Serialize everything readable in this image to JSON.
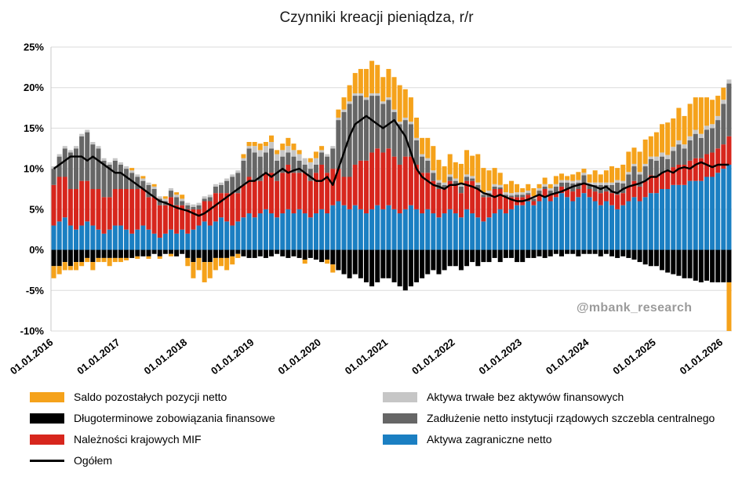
{
  "title": "Czynniki kreacji pieniądza, r/r",
  "watermark": "@mbank_research",
  "chart_data": {
    "type": "bar",
    "subtype": "stacked-bar-with-line",
    "x_start": "2016-01",
    "x_step_months": 1,
    "x_tick_labels": [
      "01.01.2016",
      "01.01.2017",
      "01.01.2018",
      "01.01.2019",
      "01.01.2020",
      "01.01.2021",
      "01.01.2022",
      "01.01.2023",
      "01.01.2024",
      "01.01.2025",
      "01.01.2026"
    ],
    "ylim": [
      -10,
      25
    ],
    "y_ticks": [
      "25%",
      "20%",
      "15%",
      "10%",
      "5%",
      "0%",
      "-5%",
      "-10%"
    ],
    "y_tick_values": [
      25,
      20,
      15,
      10,
      5,
      0,
      -5,
      -10
    ],
    "grid": true,
    "legend_position": "bottom",
    "series": [
      {
        "name": "Aktywa zagraniczne netto",
        "color": "#1B7FC2",
        "values": [
          3.0,
          3.5,
          4.0,
          3.0,
          2.5,
          3.0,
          3.5,
          3.0,
          2.5,
          2.0,
          2.5,
          3.0,
          3.0,
          2.5,
          2.0,
          2.5,
          3.0,
          2.5,
          2.0,
          1.5,
          2.0,
          2.5,
          2.0,
          2.5,
          2.0,
          2.5,
          3.0,
          3.5,
          3.0,
          3.5,
          4.0,
          3.5,
          3.0,
          3.5,
          4.0,
          4.5,
          4.0,
          4.5,
          5.0,
          4.5,
          4.0,
          4.5,
          5.0,
          4.5,
          5.0,
          4.5,
          4.0,
          4.5,
          5.0,
          4.5,
          5.5,
          6.0,
          5.5,
          5.0,
          5.5,
          5.0,
          4.5,
          5.0,
          5.5,
          5.0,
          5.5,
          5.0,
          4.5,
          5.0,
          5.5,
          5.0,
          4.5,
          5.0,
          4.5,
          4.0,
          4.5,
          5.0,
          4.5,
          4.0,
          5.0,
          4.5,
          4.0,
          3.5,
          4.0,
          4.5,
          5.0,
          4.5,
          5.0,
          5.5,
          5.5,
          6.0,
          5.5,
          6.0,
          6.5,
          6.0,
          6.5,
          7.0,
          6.5,
          6.0,
          6.5,
          7.0,
          6.5,
          6.0,
          5.5,
          6.0,
          5.5,
          5.0,
          5.5,
          6.0,
          6.5,
          6.0,
          6.5,
          7.0,
          7.0,
          7.5,
          7.5,
          8.0,
          8.0,
          8.0,
          8.5,
          8.5,
          8.5,
          9.0,
          9.0,
          9.5,
          10.0,
          10.5
        ]
      },
      {
        "name": "Należności krajowych MIF",
        "color": "#D7261D",
        "values": [
          5.0,
          5.5,
          5.0,
          4.5,
          5.0,
          5.5,
          5.0,
          4.5,
          5.0,
          4.5,
          4.0,
          4.5,
          4.5,
          5.0,
          5.5,
          5.0,
          4.5,
          4.0,
          4.5,
          4.0,
          3.5,
          4.0,
          3.5,
          3.0,
          3.0,
          2.5,
          2.0,
          2.5,
          3.0,
          3.5,
          3.0,
          3.5,
          4.0,
          3.5,
          4.0,
          4.5,
          4.5,
          4.0,
          4.5,
          5.0,
          4.5,
          5.0,
          5.5,
          5.0,
          4.5,
          5.0,
          4.5,
          5.0,
          5.5,
          5.0,
          4.5,
          4.0,
          3.5,
          4.0,
          5.0,
          6.0,
          6.5,
          7.0,
          7.0,
          7.0,
          7.0,
          6.5,
          6.0,
          6.5,
          6.0,
          5.5,
          5.0,
          4.5,
          4.0,
          3.5,
          3.0,
          3.5,
          3.5,
          3.0,
          3.5,
          4.0,
          3.5,
          3.0,
          2.5,
          3.0,
          2.5,
          2.0,
          1.5,
          1.0,
          1.0,
          0.8,
          0.5,
          0.8,
          1.0,
          0.8,
          0.5,
          0.8,
          1.0,
          1.2,
          1.0,
          1.2,
          1.0,
          1.2,
          1.5,
          1.2,
          1.5,
          1.8,
          1.5,
          1.8,
          2.0,
          1.8,
          2.0,
          2.2,
          2.0,
          2.0,
          2.2,
          2.2,
          2.5,
          2.5,
          2.5,
          2.8,
          2.8,
          2.8,
          3.0,
          3.0,
          3.0,
          3.5
        ]
      },
      {
        "name": "Zadłużenie netto instytucji rządowych szczebla centralnego",
        "color": "#666666",
        "values": [
          2.0,
          2.5,
          3.5,
          4.5,
          5.0,
          5.5,
          6.0,
          5.5,
          5.0,
          4.5,
          4.0,
          3.5,
          3.0,
          2.5,
          2.0,
          1.5,
          1.0,
          1.5,
          1.0,
          0.8,
          0.5,
          0.8,
          1.0,
          0.5,
          0.5,
          0.3,
          0.5,
          0.3,
          0.5,
          0.8,
          1.0,
          1.5,
          2.0,
          2.5,
          3.0,
          3.5,
          3.5,
          3.0,
          2.5,
          3.0,
          2.5,
          2.0,
          1.5,
          2.0,
          1.5,
          1.0,
          1.5,
          1.0,
          1.5,
          2.0,
          2.5,
          6.0,
          8.0,
          9.0,
          8.5,
          8.0,
          7.5,
          7.0,
          6.5,
          6.0,
          6.0,
          5.5,
          5.0,
          4.5,
          4.0,
          3.0,
          2.0,
          1.5,
          1.0,
          0.8,
          0.5,
          0.5,
          0.5,
          0.8,
          0.5,
          0.3,
          0.5,
          0.3,
          0.5,
          0.3,
          0.2,
          0.3,
          0.2,
          0.3,
          0.3,
          0.2,
          0.3,
          0.5,
          0.3,
          0.5,
          0.8,
          0.5,
          0.8,
          1.0,
          0.8,
          1.0,
          0.5,
          0.8,
          1.0,
          0.8,
          1.0,
          1.5,
          1.2,
          1.5,
          1.8,
          1.5,
          1.8,
          2.0,
          2.0,
          2.0,
          1.5,
          2.0,
          2.5,
          2.0,
          2.5,
          3.0,
          2.5,
          3.0,
          3.0,
          3.5,
          5.0,
          6.5
        ]
      },
      {
        "name": "Aktywa trwałe bez aktywów finansowych",
        "color": "#C6C6C6",
        "values": [
          0.3,
          0.3,
          0.3,
          0.3,
          0.3,
          0.3,
          0.3,
          0.3,
          0.3,
          0.3,
          0.3,
          0.3,
          0.3,
          0.3,
          0.3,
          0.3,
          0.3,
          0.3,
          0.3,
          0.3,
          0.3,
          0.3,
          0.3,
          0.3,
          0.3,
          0.3,
          0.3,
          0.3,
          0.3,
          0.3,
          0.3,
          0.3,
          0.3,
          0.3,
          0.3,
          0.3,
          0.8,
          0.8,
          0.8,
          0.8,
          0.8,
          0.8,
          0.8,
          0.8,
          0.8,
          0.8,
          0.8,
          0.8,
          0.3,
          0.3,
          0.3,
          0.3,
          0.3,
          0.3,
          0.3,
          0.3,
          0.3,
          0.3,
          0.3,
          0.3,
          0.3,
          0.3,
          0.3,
          0.3,
          0.3,
          0.3,
          0.3,
          0.3,
          0.3,
          0.3,
          0.3,
          0.3,
          0.3,
          0.3,
          0.3,
          0.3,
          0.3,
          0.3,
          0.3,
          0.3,
          0.3,
          0.3,
          0.3,
          0.3,
          0.3,
          0.3,
          0.3,
          0.3,
          0.3,
          0.3,
          0.3,
          0.3,
          0.3,
          0.3,
          0.3,
          0.3,
          0.3,
          0.3,
          0.3,
          0.3,
          0.3,
          0.3,
          0.3,
          0.3,
          0.3,
          0.3,
          0.3,
          0.3,
          0.5,
          0.5,
          0.5,
          0.5,
          0.5,
          0.5,
          0.5,
          0.5,
          0.5,
          0.5,
          0.5,
          0.5,
          0.5,
          0.5
        ]
      },
      {
        "name": "Długoterminowe zobowiązania finansowe",
        "color": "#000000",
        "values": [
          -2.0,
          -2.0,
          -1.5,
          -2.0,
          -1.5,
          -1.5,
          -1.0,
          -1.5,
          -1.0,
          -1.0,
          -1.0,
          -1.0,
          -1.0,
          -1.0,
          -1.0,
          -0.8,
          -0.8,
          -0.8,
          -0.5,
          -0.8,
          -0.5,
          -0.5,
          -0.8,
          -0.5,
          -1.0,
          -1.5,
          -1.0,
          -1.5,
          -1.5,
          -1.0,
          -1.0,
          -1.0,
          -0.8,
          -0.5,
          -0.8,
          -1.0,
          -1.0,
          -0.8,
          -1.0,
          -0.8,
          -0.5,
          -0.8,
          -1.0,
          -0.8,
          -1.0,
          -1.2,
          -1.0,
          -1.2,
          -1.5,
          -1.2,
          -1.8,
          -2.5,
          -3.0,
          -3.5,
          -3.0,
          -3.5,
          -4.0,
          -4.5,
          -4.0,
          -3.5,
          -3.5,
          -4.0,
          -4.5,
          -5.0,
          -4.5,
          -4.0,
          -3.5,
          -3.0,
          -2.5,
          -3.0,
          -2.5,
          -2.0,
          -2.0,
          -2.5,
          -2.0,
          -1.5,
          -2.0,
          -1.5,
          -1.5,
          -1.0,
          -1.5,
          -1.0,
          -1.0,
          -1.5,
          -1.5,
          -1.0,
          -1.0,
          -0.8,
          -1.0,
          -0.8,
          -0.5,
          -0.8,
          -0.5,
          -0.5,
          -0.8,
          -0.5,
          -0.5,
          -0.5,
          -0.8,
          -0.5,
          -0.8,
          -1.0,
          -0.8,
          -1.0,
          -1.2,
          -1.5,
          -1.8,
          -2.0,
          -2.0,
          -2.5,
          -2.8,
          -3.0,
          -3.2,
          -3.5,
          -3.5,
          -3.8,
          -4.0,
          -3.8,
          -4.0,
          -4.0,
          -4.0,
          -4.0
        ]
      },
      {
        "name": "Saldo pozostałych pozycji netto",
        "color": "#F5A21B",
        "values": [
          -1.5,
          -1.0,
          -1.0,
          -0.5,
          -1.0,
          -0.5,
          -0.5,
          -1.0,
          -0.5,
          -0.5,
          -1.0,
          -0.5,
          -0.5,
          -0.3,
          0.3,
          -0.3,
          0.3,
          -0.3,
          0.3,
          -0.3,
          0.3,
          -0.3,
          0.3,
          0.5,
          -1.0,
          -2.0,
          -1.5,
          -2.5,
          -2.0,
          -1.5,
          -1.0,
          -1.5,
          -1.0,
          -0.5,
          0.5,
          0.5,
          0.5,
          0.8,
          0.5,
          0.8,
          0.5,
          0.8,
          1.0,
          0.8,
          0.5,
          -0.5,
          0.5,
          0.8,
          0.5,
          -0.5,
          -1.0,
          1.0,
          1.5,
          2.0,
          2.5,
          3.0,
          3.5,
          4.0,
          3.5,
          3.0,
          3.5,
          4.0,
          4.5,
          3.5,
          3.0,
          2.5,
          2.0,
          2.5,
          3.0,
          2.5,
          2.0,
          2.5,
          2.0,
          2.5,
          3.0,
          2.5,
          3.5,
          3.0,
          2.5,
          2.0,
          1.5,
          1.0,
          1.5,
          1.0,
          0.5,
          0.8,
          1.0,
          0.5,
          0.8,
          0.5,
          1.0,
          0.8,
          0.5,
          0.8,
          1.0,
          0.5,
          1.0,
          1.5,
          1.0,
          1.5,
          2.0,
          1.5,
          2.0,
          2.5,
          2.0,
          2.5,
          3.0,
          2.5,
          3.0,
          3.5,
          4.0,
          3.5,
          4.0,
          3.5,
          4.0,
          4.0,
          4.5,
          3.5,
          3.0,
          2.5,
          1.5,
          -6.0
        ]
      }
    ],
    "line_series": {
      "name": "Ogółem",
      "color": "#000000",
      "values": [
        10.0,
        10.5,
        11.0,
        11.5,
        11.5,
        11.5,
        11.0,
        11.5,
        11.0,
        10.5,
        10.0,
        9.5,
        9.5,
        9.0,
        8.5,
        8.0,
        7.5,
        7.0,
        6.5,
        6.0,
        5.8,
        5.5,
        5.2,
        5.0,
        4.8,
        4.5,
        4.2,
        4.5,
        5.0,
        5.5,
        6.0,
        6.5,
        7.0,
        7.5,
        8.0,
        8.5,
        8.5,
        9.0,
        9.5,
        9.0,
        9.5,
        10.0,
        9.5,
        9.8,
        10.0,
        9.5,
        9.0,
        8.5,
        8.5,
        9.0,
        8.0,
        10.0,
        12.0,
        14.0,
        15.5,
        16.0,
        16.5,
        16.0,
        15.5,
        15.0,
        15.5,
        16.0,
        15.0,
        14.0,
        12.0,
        10.0,
        9.0,
        8.5,
        8.0,
        7.8,
        7.5,
        8.0,
        8.0,
        8.2,
        8.0,
        7.8,
        7.5,
        7.0,
        6.8,
        6.5,
        6.8,
        6.5,
        6.2,
        6.0,
        6.0,
        6.2,
        6.5,
        6.8,
        6.5,
        6.8,
        7.0,
        7.2,
        7.5,
        7.8,
        8.0,
        8.2,
        8.0,
        7.8,
        7.5,
        7.8,
        7.2,
        7.0,
        7.5,
        7.8,
        8.0,
        8.2,
        8.5,
        9.0,
        9.0,
        9.5,
        9.8,
        9.5,
        10.0,
        10.2,
        10.0,
        10.5,
        10.8,
        10.5,
        10.2,
        10.5,
        10.5,
        10.5
      ]
    }
  },
  "legend": {
    "left_column": [
      {
        "label": "Saldo pozostałych pozycji netto",
        "color": "#F5A21B",
        "type": "box"
      },
      {
        "label": "Długoterminowe zobowiązania finansowe",
        "color": "#000000",
        "type": "box"
      },
      {
        "label": "Należności krajowych MIF",
        "color": "#D7261D",
        "type": "box"
      },
      {
        "label": "Ogółem",
        "color": "#000000",
        "type": "line"
      }
    ],
    "right_column": [
      {
        "label": "Aktywa trwałe bez aktywów finansowych",
        "color": "#C6C6C6",
        "type": "box"
      },
      {
        "label": "Zadłużenie netto instytucji rządowych szczebla centralnego",
        "color": "#666666",
        "type": "box"
      },
      {
        "label": "Aktywa zagraniczne netto",
        "color": "#1B7FC2",
        "type": "box"
      }
    ]
  }
}
